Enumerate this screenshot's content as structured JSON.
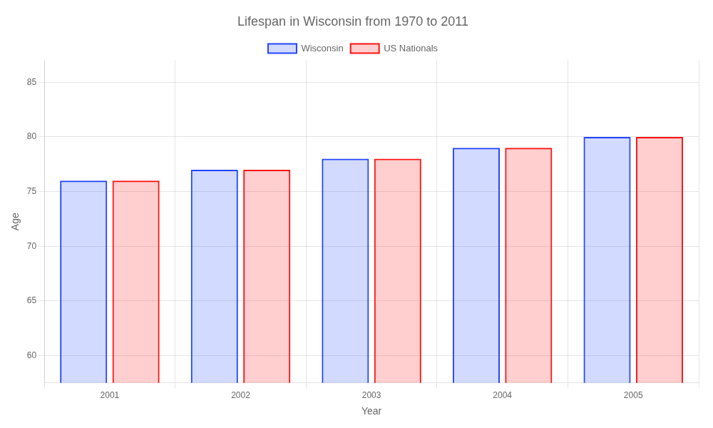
{
  "chart_data": {
    "type": "bar",
    "title": "Lifespan in Wisconsin from 1970 to 2011",
    "x_label": "Year",
    "y_label": "Age",
    "categories": [
      "2001",
      "2002",
      "2003",
      "2004",
      "2005"
    ],
    "series": [
      {
        "name": "Wisconsin",
        "color": "#2244ff",
        "values": [
          76,
          77,
          78,
          79,
          80
        ]
      },
      {
        "name": "US Nationals",
        "color": "#ff1111",
        "values": [
          76,
          77,
          78,
          79,
          80
        ]
      }
    ],
    "ylim": [
      57.5,
      87
    ],
    "yticks": [
      60,
      65,
      70,
      75,
      80,
      85
    ],
    "grid": true,
    "legend": "top"
  }
}
